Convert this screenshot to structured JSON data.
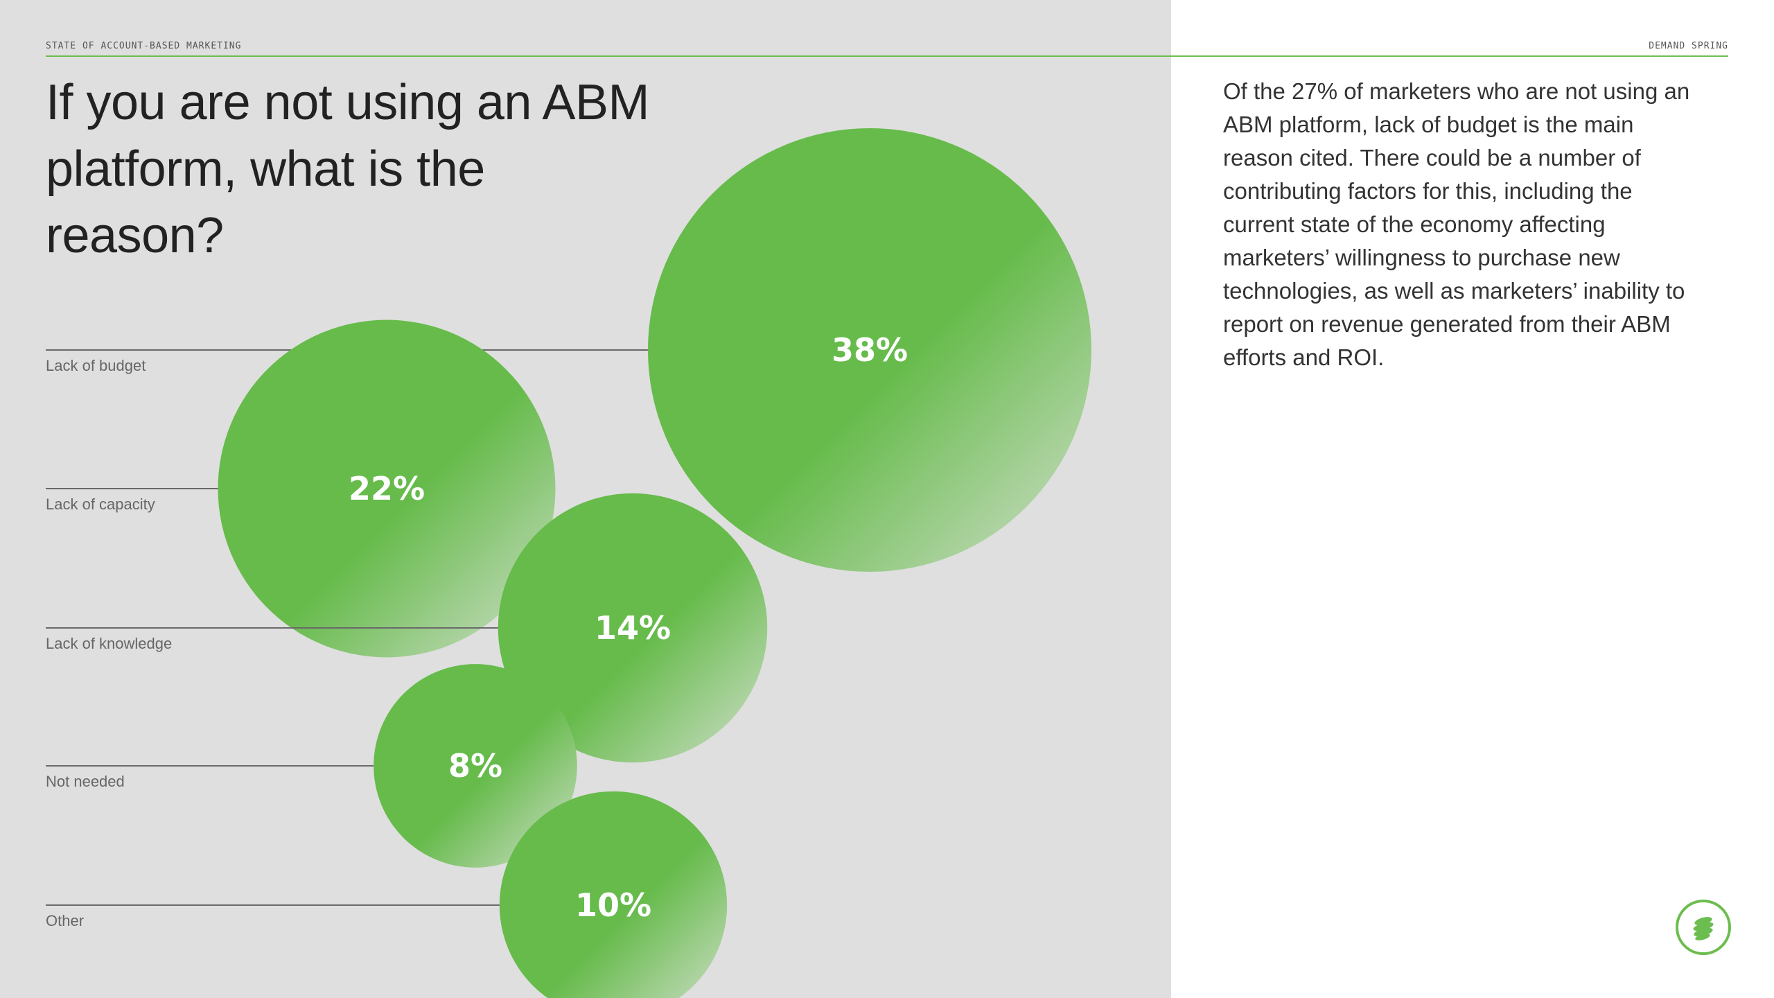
{
  "header": {
    "left_eyebrow": "STATE OF ACCOUNT-BASED MARKETING",
    "right_eyebrow": "DEMAND SPRING"
  },
  "title": "If you are not using an ABM platform, what is the reason?",
  "body": "Of the 27% of marketers who are not using an ABM platform, lack of budget is the main reason cited. There could be a number of contributing factors for this, including the current state of the economy affecting marketers’ willingness to purchase new technologies, as well as marketers’ inability to report on revenue generated from their ABM efforts and ROI.",
  "colors": {
    "accent": "#6cbd4f",
    "bubble_main": "#66bb4b",
    "bubble_light": "#c6dcbf",
    "panel": "#dfdfdf"
  },
  "logo": {
    "icon": "demand-spring-logo-icon"
  },
  "chart_data": {
    "type": "bubble",
    "title": "If you are not using an ABM platform, what is the reason?",
    "unit": "%",
    "categories": [
      "Lack of budget",
      "Lack of capacity",
      "Lack of knowledge",
      "Not needed",
      "Other"
    ],
    "values": [
      38,
      22,
      14,
      8,
      10
    ],
    "value_labels": [
      "38%",
      "22%",
      "14%",
      "8%",
      "10%"
    ]
  }
}
